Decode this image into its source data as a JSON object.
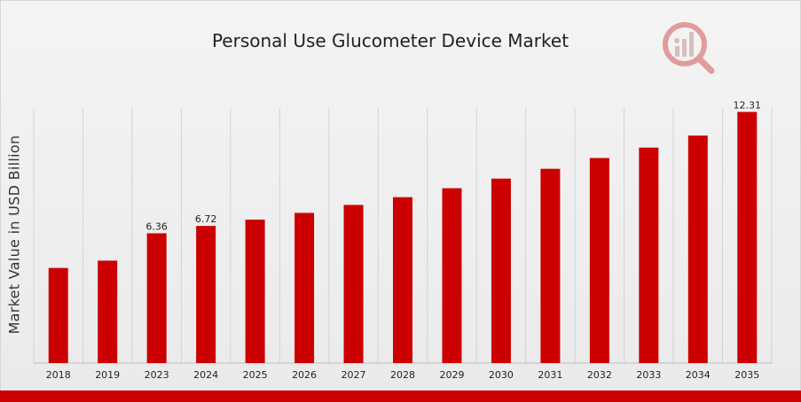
{
  "chart_data": {
    "type": "bar",
    "title": "Personal Use Glucometer Device Market",
    "xlabel": "",
    "ylabel": "Market Value in USD Billion",
    "categories": [
      "2018",
      "2019",
      "2023",
      "2024",
      "2025",
      "2026",
      "2027",
      "2028",
      "2029",
      "2030",
      "2031",
      "2032",
      "2033",
      "2034",
      "2035"
    ],
    "values": [
      4.66,
      5.02,
      6.36,
      6.72,
      7.03,
      7.36,
      7.75,
      8.13,
      8.57,
      9.04,
      9.52,
      10.05,
      10.56,
      11.15,
      12.31
    ],
    "data_labels": [
      null,
      null,
      "6.36",
      "6.72",
      null,
      null,
      null,
      null,
      null,
      null,
      null,
      null,
      null,
      null,
      "12.31"
    ],
    "ylim": [
      0,
      12.5
    ],
    "grid": {
      "vertical": true,
      "horizontal": false
    },
    "legend": "none",
    "bar_color": "#cc0000"
  },
  "colors": {
    "accent": "#cc0000",
    "logo": "#d9a5a5"
  },
  "logo_icon": "magnifier-chart-icon"
}
